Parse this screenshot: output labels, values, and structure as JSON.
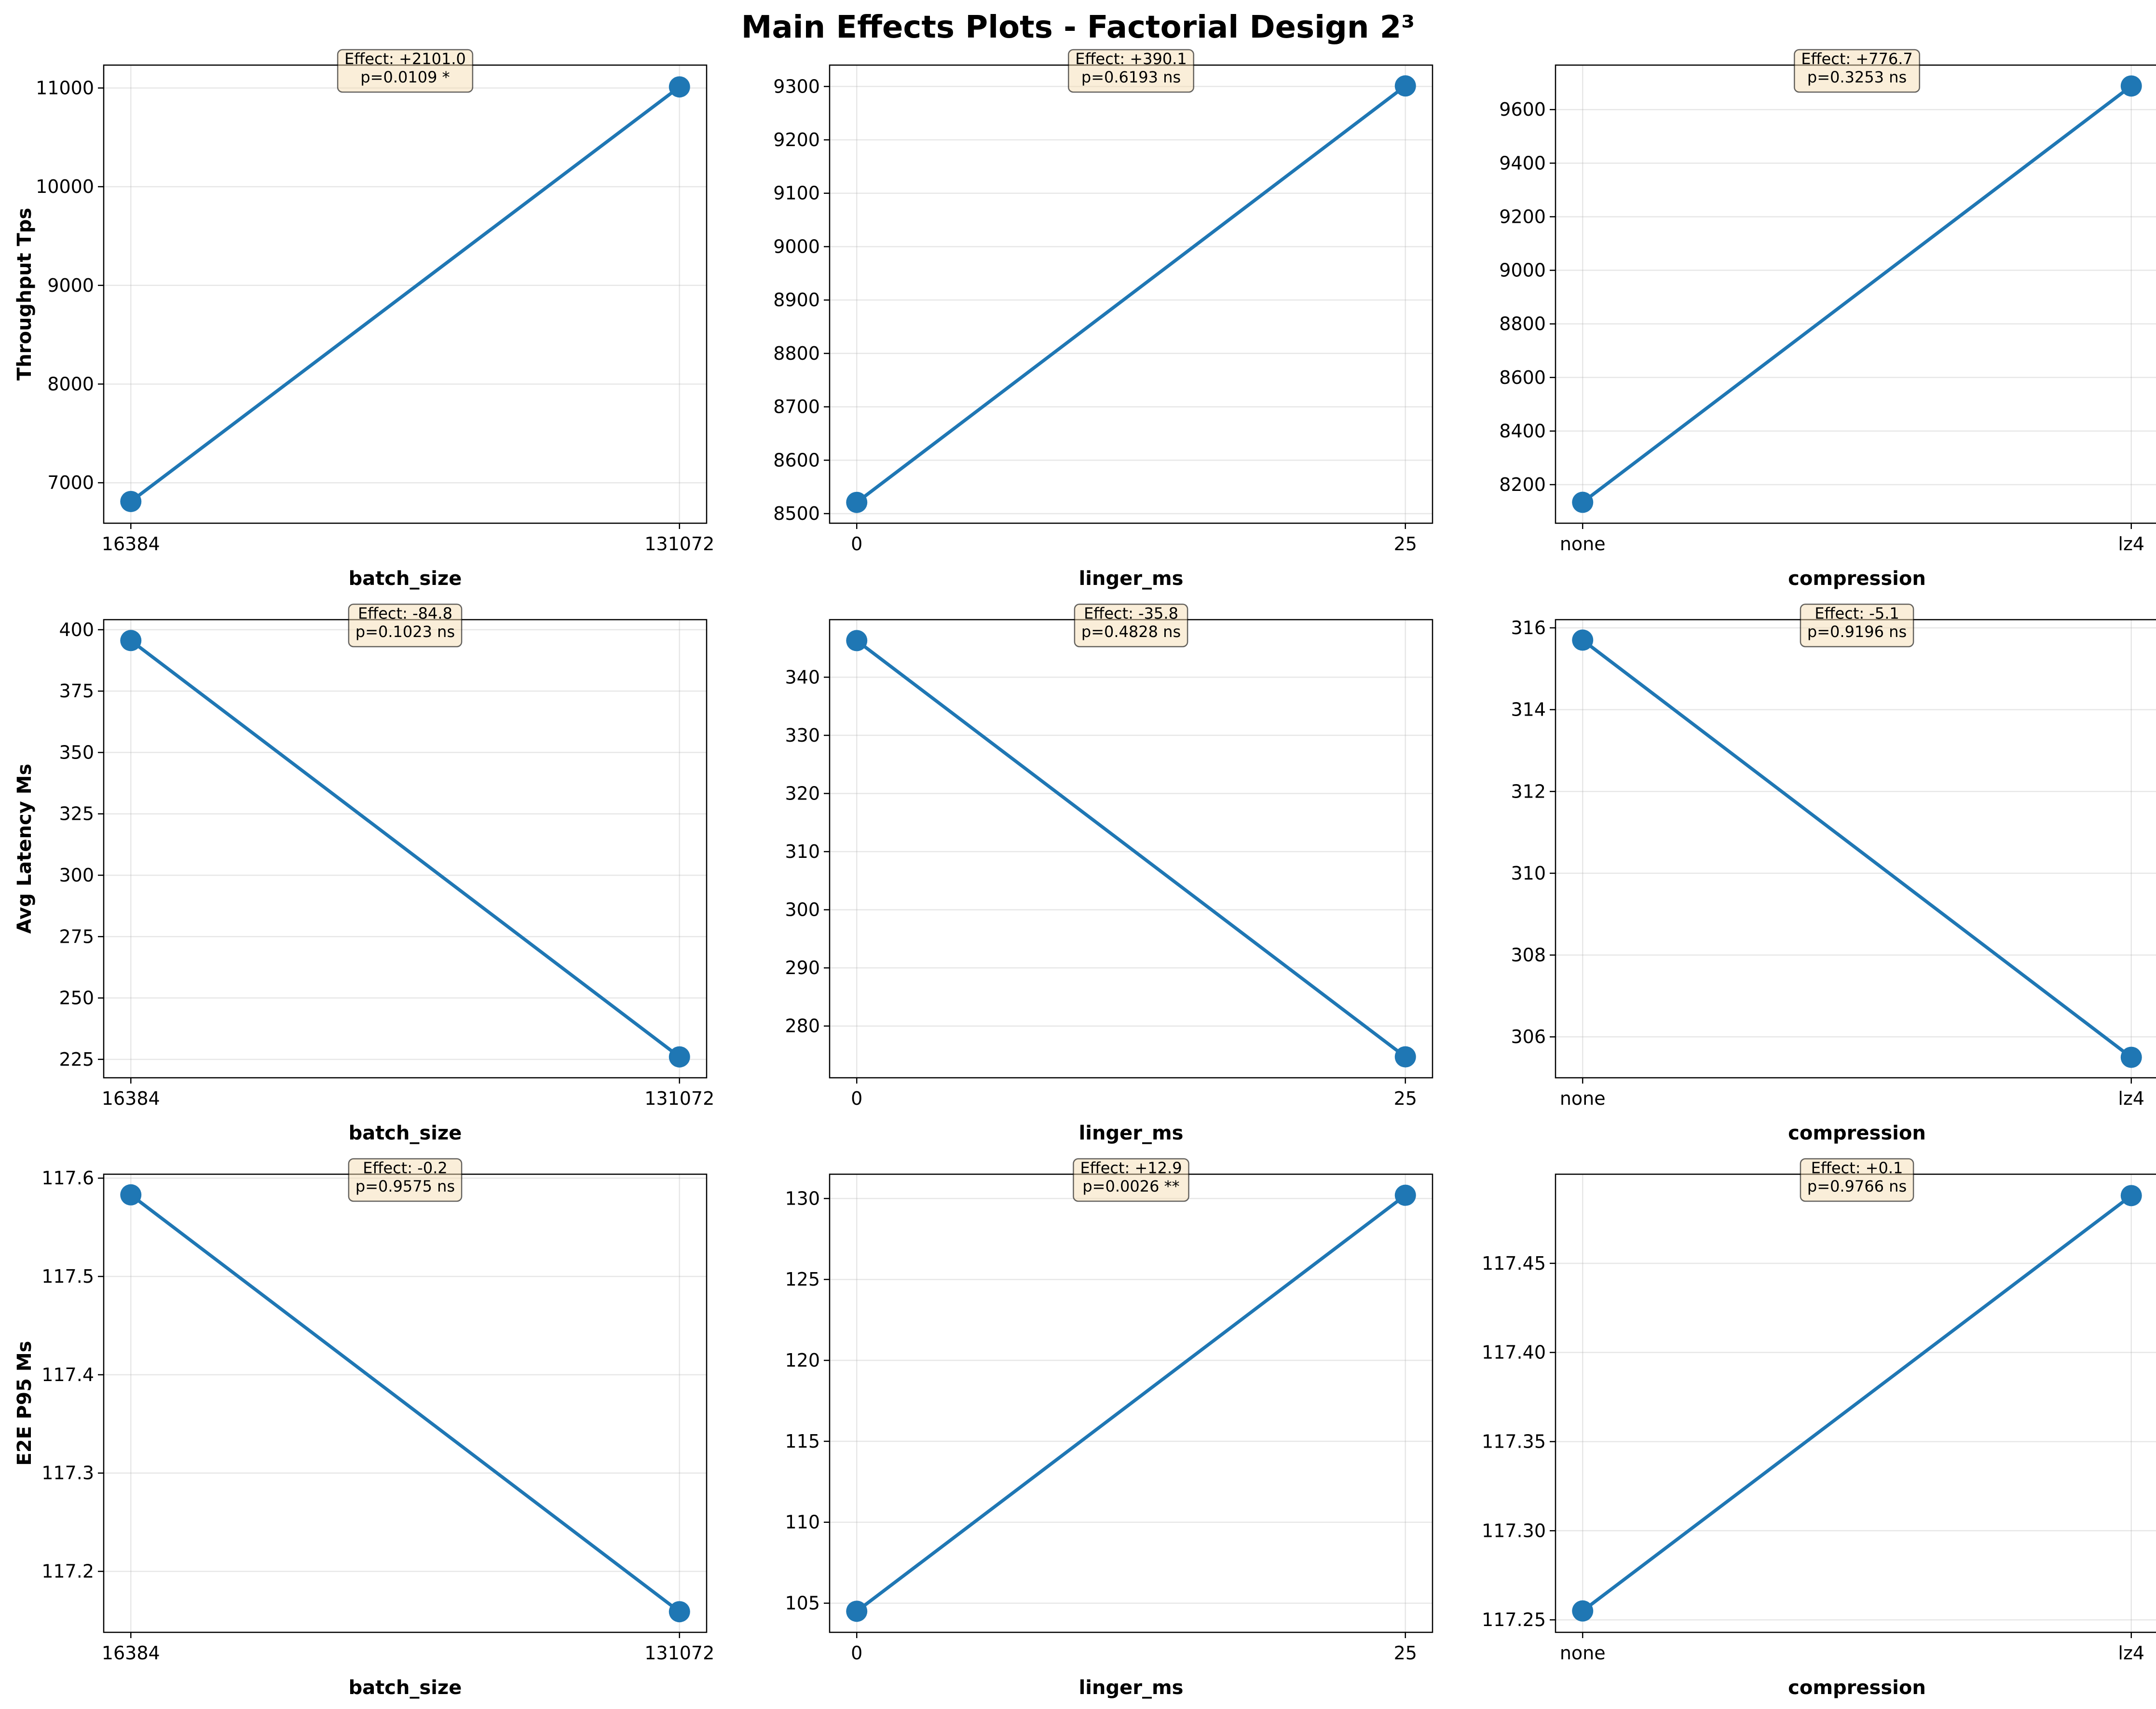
{
  "figure": {
    "title": "Main Effects Plots - Factorial Design 2³"
  },
  "style": {
    "line_color": "#1f77b4",
    "annotation_box_color": "#f5deb3"
  },
  "chart_data": [
    {
      "type": "line",
      "xlabel": "batch_size",
      "ylabel": "Throughput Tps",
      "categories": [
        "16384",
        "131072"
      ],
      "values": [
        6810,
        11011
      ],
      "ylim": [
        6590,
        11232
      ],
      "yticks": [
        7000,
        8000,
        9000,
        10000,
        11000
      ],
      "ytick_labels": [
        "7000",
        "8000",
        "9000",
        "10000",
        "11000"
      ],
      "annotation": [
        "Effect: +2101.0",
        "p=0.0109 *"
      ],
      "grid": true
    },
    {
      "type": "line",
      "xlabel": "linger_ms",
      "ylabel": "",
      "categories": [
        "0",
        "25"
      ],
      "values": [
        8521,
        9301
      ],
      "ylim": [
        8482,
        9340
      ],
      "yticks": [
        8500,
        8600,
        8700,
        8800,
        8900,
        9000,
        9100,
        9200,
        9300
      ],
      "ytick_labels": [
        "8500",
        "8600",
        "8700",
        "8800",
        "8900",
        "9000",
        "9100",
        "9200",
        "9300"
      ],
      "annotation": [
        "Effect: +390.1",
        "p=0.6193 ns"
      ],
      "grid": true
    },
    {
      "type": "line",
      "xlabel": "compression",
      "ylabel": "",
      "categories": [
        "none",
        "lz4"
      ],
      "values": [
        8134,
        9688
      ],
      "ylim": [
        8056,
        9766
      ],
      "yticks": [
        8200,
        8400,
        8600,
        8800,
        9000,
        9200,
        9400,
        9600
      ],
      "ytick_labels": [
        "8200",
        "8400",
        "8600",
        "8800",
        "9000",
        "9200",
        "9400",
        "9600"
      ],
      "annotation": [
        "Effect: +776.7",
        "p=0.3253 ns"
      ],
      "grid": true
    },
    {
      "type": "line",
      "xlabel": "batch_size",
      "ylabel": "Avg Latency Ms",
      "categories": [
        "16384",
        "131072"
      ],
      "values": [
        395.6,
        226.0
      ],
      "ylim": [
        217.5,
        404.1
      ],
      "yticks": [
        225,
        250,
        275,
        300,
        325,
        350,
        375,
        400
      ],
      "ytick_labels": [
        "225",
        "250",
        "275",
        "300",
        "325",
        "350",
        "375",
        "400"
      ],
      "annotation": [
        "Effect: -84.8",
        "p=0.1023 ns"
      ],
      "grid": true
    },
    {
      "type": "line",
      "xlabel": "linger_ms",
      "ylabel": "",
      "categories": [
        "0",
        "25"
      ],
      "values": [
        346.3,
        274.7
      ],
      "ylim": [
        271.1,
        349.9
      ],
      "yticks": [
        280,
        290,
        300,
        310,
        320,
        330,
        340
      ],
      "ytick_labels": [
        "280",
        "290",
        "300",
        "310",
        "320",
        "330",
        "340"
      ],
      "annotation": [
        "Effect: -35.8",
        "p=0.4828 ns"
      ],
      "grid": true
    },
    {
      "type": "line",
      "xlabel": "compression",
      "ylabel": "",
      "categories": [
        "none",
        "lz4"
      ],
      "values": [
        315.7,
        305.5
      ],
      "ylim": [
        305.0,
        316.2
      ],
      "yticks": [
        306,
        308,
        310,
        312,
        314,
        316
      ],
      "ytick_labels": [
        "306",
        "308",
        "310",
        "312",
        "314",
        "316"
      ],
      "annotation": [
        "Effect: -5.1",
        "p=0.9196 ns"
      ],
      "grid": true
    },
    {
      "type": "line",
      "xlabel": "batch_size",
      "ylabel": "E2E P95 Ms",
      "categories": [
        "16384",
        "131072"
      ],
      "values": [
        117.583,
        117.159
      ],
      "ylim": [
        117.138,
        117.604
      ],
      "yticks": [
        117.2,
        117.3,
        117.4,
        117.5,
        117.6
      ],
      "ytick_labels": [
        "117.2",
        "117.3",
        "117.4",
        "117.5",
        "117.6"
      ],
      "annotation": [
        "Effect: -0.2",
        "p=0.9575 ns"
      ],
      "grid": true
    },
    {
      "type": "line",
      "xlabel": "linger_ms",
      "ylabel": "",
      "categories": [
        "0",
        "25"
      ],
      "values": [
        104.5,
        130.2
      ],
      "ylim": [
        103.2,
        131.5
      ],
      "yticks": [
        105,
        110,
        115,
        120,
        125,
        130
      ],
      "ytick_labels": [
        "105",
        "110",
        "115",
        "120",
        "125",
        "130"
      ],
      "annotation": [
        "Effect: +12.9",
        "p=0.0026 **"
      ],
      "grid": true
    },
    {
      "type": "line",
      "xlabel": "compression",
      "ylabel": "",
      "categories": [
        "none",
        "lz4"
      ],
      "values": [
        117.255,
        117.488
      ],
      "ylim": [
        117.243,
        117.5
      ],
      "yticks": [
        117.25,
        117.3,
        117.35,
        117.4,
        117.45
      ],
      "ytick_labels": [
        "117.25",
        "117.30",
        "117.35",
        "117.40",
        "117.45"
      ],
      "annotation": [
        "Effect: +0.1",
        "p=0.9766 ns"
      ],
      "grid": true
    }
  ]
}
